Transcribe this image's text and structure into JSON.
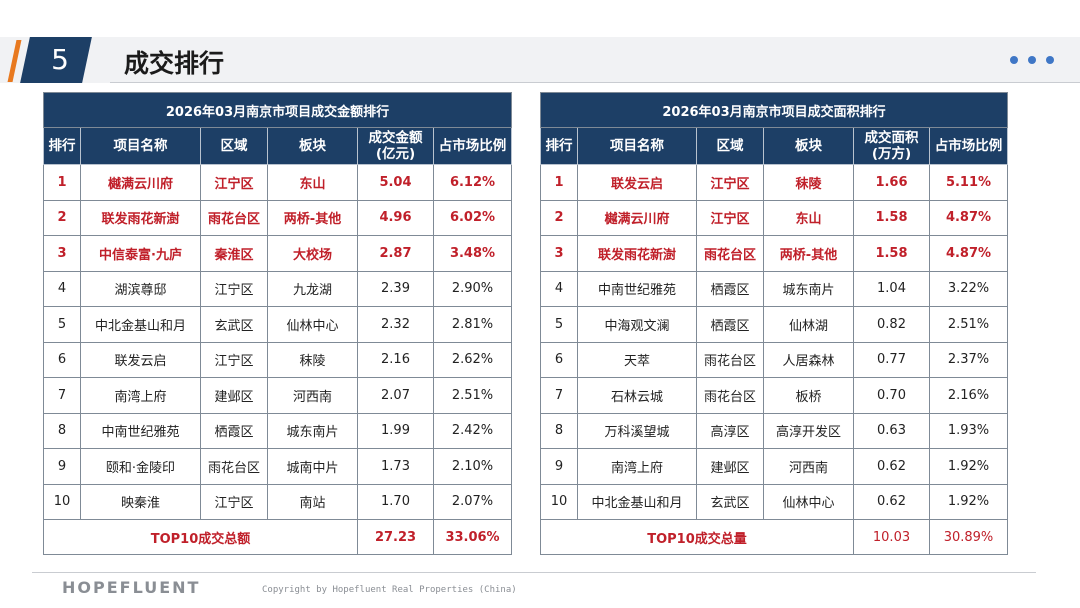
{
  "header": {
    "number": "5",
    "title": "成交排行"
  },
  "footer": {
    "logo": "HOPEFLUENT",
    "copyright": "Copyright by Hopefluent Real Properties (China)"
  },
  "colors": {
    "navy": "#1d3f66",
    "accent": "#e8791f",
    "highlight": "#c0202a",
    "dots": "#3f77c6"
  },
  "table1": {
    "title": "2026年03月南京市项目成交金额排行",
    "headers": [
      "排行",
      "项目名称",
      "区域",
      "板块",
      "成交金额\n(亿元)",
      "占市场比例"
    ],
    "rows": [
      [
        "1",
        "樾满云川府",
        "江宁区",
        "东山",
        "5.04",
        "6.12%"
      ],
      [
        "2",
        "联发雨花新澍",
        "雨花台区",
        "两桥-其他",
        "4.96",
        "6.02%"
      ],
      [
        "3",
        "中信泰富·九庐",
        "秦淮区",
        "大校场",
        "2.87",
        "3.48%"
      ],
      [
        "4",
        "湖滨尊邸",
        "江宁区",
        "九龙湖",
        "2.39",
        "2.90%"
      ],
      [
        "5",
        "中北金基山和月",
        "玄武区",
        "仙林中心",
        "2.32",
        "2.81%"
      ],
      [
        "6",
        "联发云启",
        "江宁区",
        "秣陵",
        "2.16",
        "2.62%"
      ],
      [
        "7",
        "南湾上府",
        "建邺区",
        "河西南",
        "2.07",
        "2.51%"
      ],
      [
        "8",
        "中南世纪雅苑",
        "栖霞区",
        "城东南片",
        "1.99",
        "2.42%"
      ],
      [
        "9",
        "颐和·金陵印",
        "雨花台区",
        "城南中片",
        "1.73",
        "2.10%"
      ],
      [
        "10",
        "映秦淮",
        "江宁区",
        "南站",
        "1.70",
        "2.07%"
      ]
    ],
    "total": {
      "label": "TOP10成交总额",
      "value": "27.23",
      "share": "33.06%"
    }
  },
  "table2": {
    "title": "2026年03月南京市项目成交面积排行",
    "headers": [
      "排行",
      "项目名称",
      "区域",
      "板块",
      "成交面积\n(万方)",
      "占市场比例"
    ],
    "rows": [
      [
        "1",
        "联发云启",
        "江宁区",
        "秣陵",
        "1.66",
        "5.11%"
      ],
      [
        "2",
        "樾满云川府",
        "江宁区",
        "东山",
        "1.58",
        "4.87%"
      ],
      [
        "3",
        "联发雨花新澍",
        "雨花台区",
        "两桥-其他",
        "1.58",
        "4.87%"
      ],
      [
        "4",
        "中南世纪雅苑",
        "栖霞区",
        "城东南片",
        "1.04",
        "3.22%"
      ],
      [
        "5",
        "中海观文澜",
        "栖霞区",
        "仙林湖",
        "0.82",
        "2.51%"
      ],
      [
        "6",
        "天萃",
        "雨花台区",
        "人居森林",
        "0.77",
        "2.37%"
      ],
      [
        "7",
        "石林云城",
        "雨花台区",
        "板桥",
        "0.70",
        "2.16%"
      ],
      [
        "8",
        "万科溪望城",
        "高淳区",
        "高淳开发区",
        "0.63",
        "1.93%"
      ],
      [
        "9",
        "南湾上府",
        "建邺区",
        "河西南",
        "0.62",
        "1.92%"
      ],
      [
        "10",
        "中北金基山和月",
        "玄武区",
        "仙林中心",
        "0.62",
        "1.92%"
      ]
    ],
    "total": {
      "label": "TOP10成交总量",
      "value": "10.03",
      "share": "30.89%"
    }
  }
}
